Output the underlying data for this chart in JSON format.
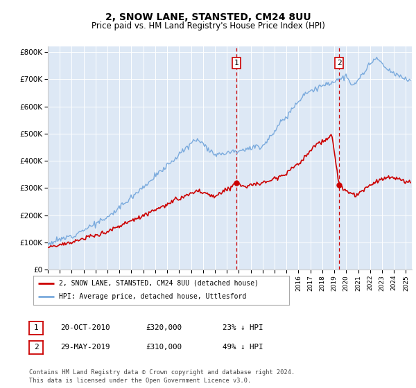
{
  "title": "2, SNOW LANE, STANSTED, CM24 8UU",
  "subtitle": "Price paid vs. HM Land Registry's House Price Index (HPI)",
  "ylabel_ticks": [
    "£0",
    "£100K",
    "£200K",
    "£300K",
    "£400K",
    "£500K",
    "£600K",
    "£700K",
    "£800K"
  ],
  "ytick_vals": [
    0,
    100000,
    200000,
    300000,
    400000,
    500000,
    600000,
    700000,
    800000
  ],
  "ylim": [
    0,
    820000
  ],
  "xlim_start": 1995.0,
  "xlim_end": 2025.5,
  "sale1_year": 2010.8,
  "sale1_price": 320000,
  "sale1_date": "20-OCT-2010",
  "sale1_pct": "23% ↓ HPI",
  "sale2_year": 2019.42,
  "sale2_price": 310000,
  "sale2_date": "29-MAY-2019",
  "sale2_pct": "49% ↓ HPI",
  "legend_entry1": "2, SNOW LANE, STANSTED, CM24 8UU (detached house)",
  "legend_entry2": "HPI: Average price, detached house, Uttlesford",
  "footnote1": "Contains HM Land Registry data © Crown copyright and database right 2024.",
  "footnote2": "This data is licensed under the Open Government Licence v3.0.",
  "hpi_color": "#7aaadd",
  "price_color": "#cc0000",
  "dashed_line_color": "#cc0000",
  "box_color": "#cc0000",
  "bg_plot_color": "#dde8f5",
  "grid_color": "#ffffff"
}
